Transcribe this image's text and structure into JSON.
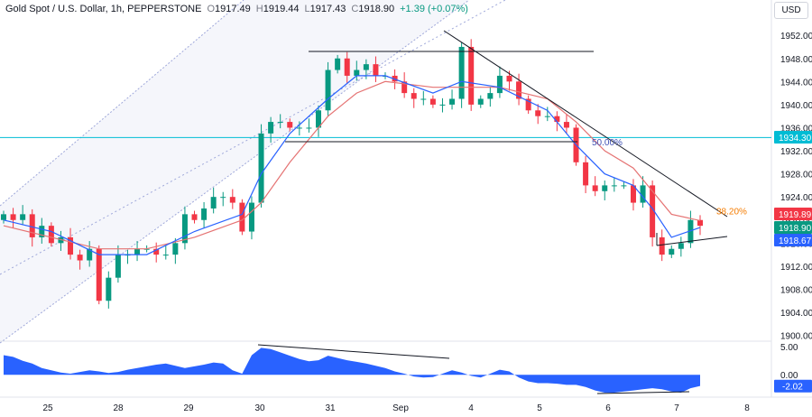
{
  "header": {
    "symbol": "Gold Spot / U.S. Dollar, 1h, PEPPERSTONE",
    "open_label": "O",
    "open": "1917.49",
    "high_label": "H",
    "high": "1919.44",
    "low_label": "L",
    "low": "1917.43",
    "close_label": "C",
    "close": "1918.90",
    "change": "+1.39 (+0.07%)",
    "currency": "USD"
  },
  "colors": {
    "up": "#089981",
    "down": "#f23645",
    "ema_fast": "#2962ff",
    "ema_slow": "#e57373",
    "horizontal_line": "#00bcd4",
    "oscillator": "#2962ff",
    "fib50": "#3f51b5",
    "fib382": "#f57c00"
  },
  "price_tags": [
    {
      "text": "1934.30",
      "color": "#00bcd4"
    },
    {
      "text": "1919.89",
      "color": "#f23645"
    },
    {
      "text": "1918.90",
      "color": "#089981"
    },
    {
      "text": "1918.67",
      "color": "#2962ff"
    }
  ],
  "annotations": {
    "fib_50": "50.00%",
    "fib_382": "38.20%"
  },
  "osc_tag": "-2.02",
  "chart_data": [
    {
      "type": "candlestick",
      "yticks": [
        "1952.00",
        "1948.00",
        "1944.00",
        "1940.00",
        "1936.00",
        "1932.00",
        "1928.00",
        "1924.00",
        "1920.00",
        "1916.00",
        "1912.00",
        "1908.00",
        "1904.00",
        "1900.00"
      ],
      "ylim": [
        1899,
        1955
      ],
      "xticks": [
        "25",
        "28",
        "29",
        "30",
        "31",
        "Sep",
        "4",
        "5",
        "6",
        "7",
        "8"
      ],
      "horizontal_line": 1934.3,
      "fib_levels": [
        {
          "label": "50.00%",
          "price": 1933.6
        },
        {
          "label": "38.20%",
          "price": 1921.6
        }
      ],
      "close_path": [
        [
          0,
          1921
        ],
        [
          1,
          1920
        ],
        [
          2,
          1921
        ],
        [
          3,
          1917
        ],
        [
          4,
          1919
        ],
        [
          5,
          1916
        ],
        [
          6,
          1917
        ],
        [
          7,
          1914
        ],
        [
          8,
          1913
        ],
        [
          9,
          1915
        ],
        [
          10,
          1906
        ],
        [
          11,
          1910
        ],
        [
          12,
          1914
        ],
        [
          13,
          1914
        ],
        [
          14,
          1915
        ],
        [
          15,
          1915
        ],
        [
          16,
          1914
        ],
        [
          17,
          1914
        ],
        [
          18,
          1916
        ],
        [
          19,
          1921
        ],
        [
          20,
          1920
        ],
        [
          21,
          1922
        ],
        [
          22,
          1924
        ],
        [
          23,
          1924
        ],
        [
          24,
          1923
        ],
        [
          25,
          1918
        ],
        [
          26,
          1923
        ],
        [
          27,
          1935
        ],
        [
          28,
          1937
        ],
        [
          29,
          1937
        ],
        [
          30,
          1936
        ],
        [
          31,
          1936
        ],
        [
          32,
          1936
        ],
        [
          33,
          1939
        ],
        [
          34,
          1946
        ],
        [
          35,
          1948
        ],
        [
          36,
          1945
        ],
        [
          37,
          1946
        ],
        [
          38,
          1947
        ],
        [
          39,
          1945
        ],
        [
          40,
          1945
        ],
        [
          41,
          1944
        ],
        [
          42,
          1942
        ],
        [
          43,
          1941
        ],
        [
          44,
          1941
        ],
        [
          45,
          1940
        ],
        [
          46,
          1940
        ],
        [
          47,
          1941
        ],
        [
          48,
          1950
        ],
        [
          49,
          1940
        ],
        [
          50,
          1941
        ],
        [
          51,
          1942
        ],
        [
          52,
          1945
        ],
        [
          53,
          1944
        ],
        [
          54,
          1941
        ],
        [
          55,
          1939
        ],
        [
          56,
          1938
        ],
        [
          57,
          1938
        ],
        [
          58,
          1937
        ],
        [
          59,
          1936
        ],
        [
          60,
          1930
        ],
        [
          61,
          1926
        ],
        [
          62,
          1925
        ],
        [
          63,
          1926
        ],
        [
          64,
          1926
        ],
        [
          65,
          1926
        ],
        [
          66,
          1923
        ],
        [
          67,
          1926
        ],
        [
          68,
          1917
        ],
        [
          69,
          1914
        ],
        [
          70,
          1915
        ],
        [
          71,
          1916
        ],
        [
          72,
          1920
        ],
        [
          73,
          1919
        ]
      ],
      "ema_fast_path": [
        [
          0,
          1920
        ],
        [
          5,
          1918
        ],
        [
          10,
          1914
        ],
        [
          15,
          1914
        ],
        [
          20,
          1918
        ],
        [
          25,
          1921
        ],
        [
          27,
          1928
        ],
        [
          30,
          1935
        ],
        [
          34,
          1941
        ],
        [
          37,
          1945
        ],
        [
          40,
          1945
        ],
        [
          45,
          1942
        ],
        [
          48,
          1944
        ],
        [
          52,
          1943
        ],
        [
          57,
          1939
        ],
        [
          60,
          1933
        ],
        [
          63,
          1928
        ],
        [
          66,
          1926
        ],
        [
          68,
          1922
        ],
        [
          70,
          1917
        ],
        [
          73,
          1918.7
        ]
      ],
      "ema_slow_path": [
        [
          0,
          1919
        ],
        [
          5,
          1917
        ],
        [
          10,
          1915
        ],
        [
          15,
          1915
        ],
        [
          20,
          1917
        ],
        [
          25,
          1920
        ],
        [
          27,
          1923
        ],
        [
          30,
          1930
        ],
        [
          34,
          1938
        ],
        [
          37,
          1942
        ],
        [
          40,
          1944
        ],
        [
          45,
          1943
        ],
        [
          48,
          1943
        ],
        [
          52,
          1943
        ],
        [
          57,
          1941
        ],
        [
          60,
          1937
        ],
        [
          63,
          1932
        ],
        [
          66,
          1929
        ],
        [
          68,
          1925
        ],
        [
          70,
          1921
        ],
        [
          73,
          1919.9
        ]
      ],
      "oscillator": {
        "yticks": [
          "5.00",
          "0.00"
        ],
        "ylim": [
          -4,
          6
        ],
        "last_value": -2.02,
        "values": [
          3.5,
          3.2,
          2.5,
          2.0,
          1.2,
          0.8,
          0.4,
          0.2,
          0.5,
          0.8,
          0.6,
          0.3,
          0.5,
          0.9,
          1.2,
          1.5,
          1.8,
          2.0,
          1.6,
          1.2,
          1.5,
          1.8,
          2.2,
          2.0,
          0.8,
          0.2,
          3.5,
          4.8,
          4.6,
          4.0,
          3.4,
          2.8,
          2.4,
          2.6,
          3.4,
          3.0,
          2.6,
          2.3,
          2.0,
          1.6,
          1.2,
          0.6,
          0.2,
          -0.3,
          -0.5,
          -0.4,
          0.2,
          0.8,
          0.4,
          -0.2,
          -0.5,
          0.2,
          0.9,
          0.6,
          -0.5,
          -1.2,
          -1.5,
          -1.5,
          -1.6,
          -1.8,
          -1.8,
          -2.2,
          -2.8,
          -3.2,
          -3.2,
          -3.0,
          -2.8,
          -2.6,
          -2.4,
          -2.6,
          -3.0,
          -3.2,
          -2.4,
          -2.0
        ]
      }
    }
  ]
}
